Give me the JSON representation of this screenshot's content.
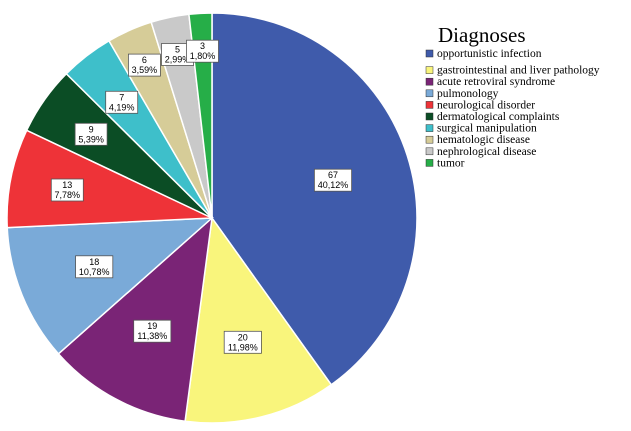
{
  "chart_data": {
    "type": "pie",
    "title": "",
    "legend_title": "Diagnoses",
    "legend_position": "top-right",
    "slices": [
      {
        "label": "opportunistic infection",
        "value": 67,
        "percent": "40,12%",
        "color": "#3f5bab"
      },
      {
        "label": "gastrointestinal and liver pathology",
        "value": 20,
        "percent": "11,98%",
        "color": "#f9f57c"
      },
      {
        "label": "acute retroviral syndrome",
        "value": 19,
        "percent": "11,38%",
        "color": "#7a2476"
      },
      {
        "label": "pulmonology",
        "value": 18,
        "percent": "10,78%",
        "color": "#7aaad8"
      },
      {
        "label": "neurological disorder",
        "value": 13,
        "percent": "7,78%",
        "color": "#ee3338"
      },
      {
        "label": "dermatological complaints",
        "value": 9,
        "percent": "5,39%",
        "color": "#0b4d25"
      },
      {
        "label": "surgical manipulation",
        "value": 7,
        "percent": "4,19%",
        "color": "#3ebfca"
      },
      {
        "label": "hematologic disease",
        "value": 6,
        "percent": "3,59%",
        "color": "#d6cc98"
      },
      {
        "label": "nephrological disease",
        "value": 5,
        "percent": "2,99%",
        "color": "#c9c9c9"
      },
      {
        "label": "tumor",
        "value": 3,
        "percent": "1,80%",
        "color": "#26ae48"
      }
    ]
  }
}
